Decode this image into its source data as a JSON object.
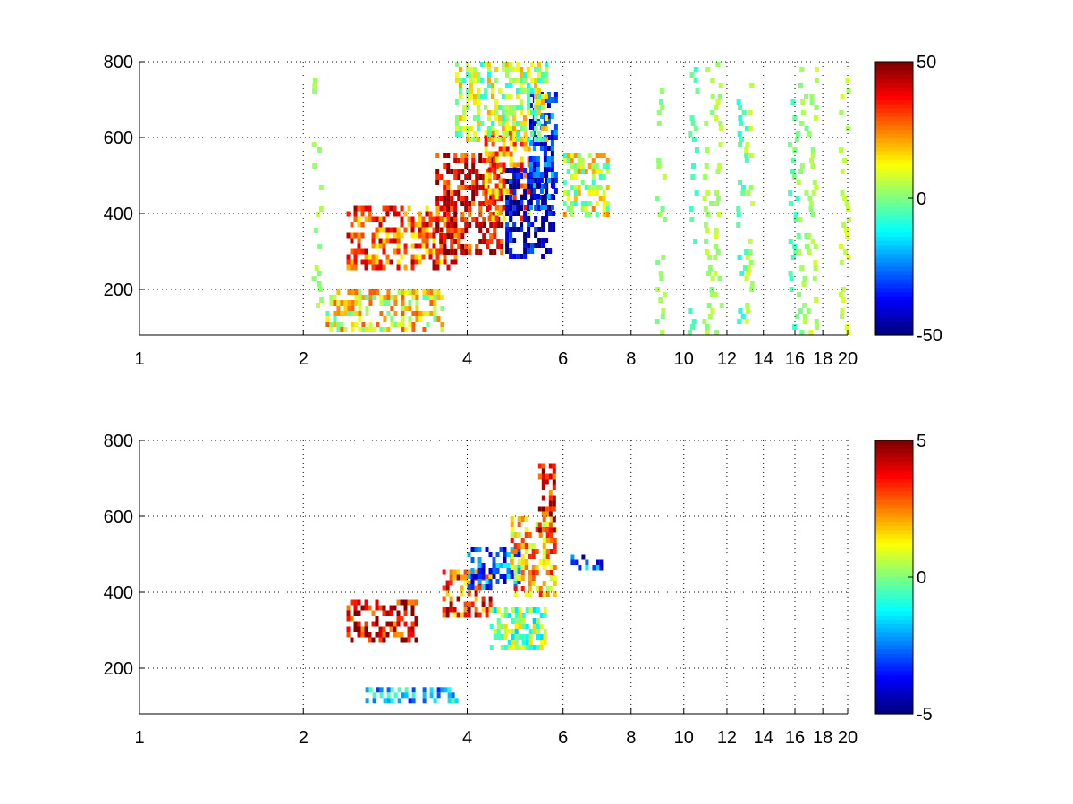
{
  "chart_data": [
    {
      "type": "heatmap",
      "title": "",
      "xlabel": "",
      "ylabel": "",
      "xlim": [
        1,
        20
      ],
      "ylim": [
        80,
        800
      ],
      "x_scale": "log",
      "x_ticks": [
        "1",
        "2",
        "4",
        "6",
        "8",
        "10",
        "12",
        "14",
        "16",
        "18",
        "20"
      ],
      "y_ticks": [
        "200",
        "400",
        "600",
        "800"
      ],
      "grid": true,
      "colormap": "jet",
      "clim": [
        -50,
        50
      ],
      "colorbar_ticks": [
        "50",
        "0",
        "-50"
      ],
      "regions": [
        {
          "x": [
            2.4,
            3.8
          ],
          "y": [
            260,
            420
          ],
          "value": 30
        },
        {
          "x": [
            3.5,
            4.6
          ],
          "y": [
            300,
            560
          ],
          "value": 40
        },
        {
          "x": [
            4.3,
            5.2
          ],
          "y": [
            380,
            620
          ],
          "value": 25
        },
        {
          "x": [
            4.7,
            5.8
          ],
          "y": [
            280,
            520
          ],
          "value": -45
        },
        {
          "x": [
            5.2,
            5.8
          ],
          "y": [
            420,
            720
          ],
          "value": -35
        },
        {
          "x": [
            2.2,
            3.6
          ],
          "y": [
            100,
            200
          ],
          "value": 12
        },
        {
          "x": [
            3.8,
            5.6
          ],
          "y": [
            600,
            800
          ],
          "value": 5
        },
        {
          "x": [
            6.0,
            7.2
          ],
          "y": [
            400,
            560
          ],
          "value": 8
        }
      ],
      "stripes": [
        {
          "x": 2.1,
          "value": 3
        },
        {
          "x": 9.0,
          "value": 2
        },
        {
          "x": 10.3,
          "value": -5
        },
        {
          "x": 11.0,
          "value": 3
        },
        {
          "x": 11.5,
          "value": 4
        },
        {
          "x": 12.7,
          "value": -6
        },
        {
          "x": 13.1,
          "value": 6
        },
        {
          "x": 15.8,
          "value": -4
        },
        {
          "x": 16.4,
          "value": 2
        },
        {
          "x": 17.1,
          "value": 5
        },
        {
          "x": 19.6,
          "value": 6
        }
      ]
    },
    {
      "type": "heatmap",
      "title": "",
      "xlabel": "",
      "ylabel": "",
      "xlim": [
        1,
        20
      ],
      "ylim": [
        80,
        800
      ],
      "x_scale": "log",
      "x_ticks": [
        "1",
        "2",
        "4",
        "6",
        "8",
        "10",
        "12",
        "14",
        "16",
        "18",
        "20"
      ],
      "y_ticks": [
        "200",
        "400",
        "600",
        "800"
      ],
      "grid": true,
      "colormap": "jet",
      "clim": [
        -5,
        5
      ],
      "colorbar_ticks": [
        "5",
        "0",
        "-5"
      ],
      "regions": [
        {
          "x": [
            2.4,
            3.2
          ],
          "y": [
            280,
            380
          ],
          "value": 4
        },
        {
          "x": [
            3.6,
            4.4
          ],
          "y": [
            340,
            460
          ],
          "value": 3
        },
        {
          "x": [
            4.0,
            5.0
          ],
          "y": [
            420,
            520
          ],
          "value": -3
        },
        {
          "x": [
            4.8,
            5.8
          ],
          "y": [
            400,
            600
          ],
          "value": 2
        },
        {
          "x": [
            4.4,
            5.6
          ],
          "y": [
            260,
            360
          ],
          "value": 0
        },
        {
          "x": [
            5.4,
            5.8
          ],
          "y": [
            560,
            740
          ],
          "value": 4
        },
        {
          "x": [
            2.6,
            3.8
          ],
          "y": [
            120,
            150
          ],
          "value": -2
        },
        {
          "x": [
            6.2,
            7.0
          ],
          "y": [
            460,
            500
          ],
          "value": -3
        }
      ],
      "stripes": []
    }
  ]
}
